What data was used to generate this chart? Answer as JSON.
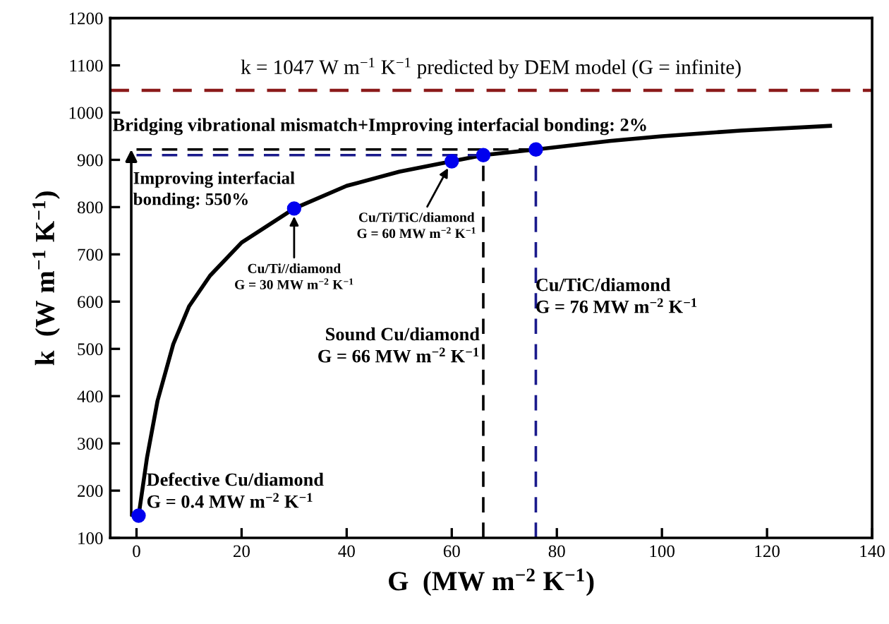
{
  "chart_data": {
    "type": "line",
    "xlabel": "G  (MW m$^{−2}$ K$^{−1}$)",
    "ylabel": "k  (W m$^{−1}$ K$^{−1}$)",
    "xlim": [
      -5,
      140
    ],
    "xticks": [
      0,
      20,
      40,
      60,
      80,
      100,
      120,
      140
    ],
    "ylim": [
      100,
      1200
    ],
    "yticks": [
      100,
      200,
      300,
      400,
      500,
      600,
      700,
      800,
      900,
      1000,
      1100,
      1200
    ],
    "grid": false,
    "legend": false,
    "series": [
      {
        "color": "#000000",
        "line_style": "solid",
        "x": [
          0.4,
          2,
          4,
          7,
          10,
          14,
          20,
          30,
          40,
          50,
          60,
          66,
          76,
          90,
          100,
          115,
          132
        ],
        "values": [
          147,
          270,
          390,
          510,
          590,
          655,
          725,
          797,
          845,
          875,
          897,
          910,
          922,
          940,
          950,
          962,
          972
        ]
      },
      {
        "type": "line",
        "color": "#000000",
        "line_style": "dashed",
        "x": [
          0,
          76
        ],
        "values": [
          922,
          922
        ]
      },
      {
        "type": "line",
        "color": "#1a1a8c",
        "line_style": "dashed",
        "x": [
          0,
          66
        ],
        "values": [
          910,
          910
        ]
      },
      {
        "type": "line",
        "color": "#000000",
        "line_style": "dashed",
        "x": [
          66,
          66
        ],
        "values": [
          100,
          910
        ]
      },
      {
        "type": "line",
        "color": "#1a1a8c",
        "line_style": "dashed",
        "x": [
          76,
          76
        ],
        "values": [
          100,
          922
        ]
      },
      {
        "type": "scatter",
        "color": "#0000ee",
        "marker": "circle",
        "x": [
          0.4,
          30,
          60,
          66,
          76
        ],
        "values": [
          147,
          797,
          897,
          910,
          922
        ]
      }
    ],
    "ref_lines": [
      {
        "axis": "y",
        "value": 1047,
        "label": "k = 1047 W m$^{−1}$ K$^{−1}$ predicted by DEM model (G = infinite)",
        "color": "#8b1a1a",
        "line_style": "dashed"
      }
    ],
    "annotations": [
      "Bridging vibrational mismatch+Improving interfacial bonding: 2%",
      "Improving interfacial\nbonding: 550%",
      {
        "text": "Cu/Ti//diamond\nG = 30 MW m$^{−2}$ K$^{−1}$",
        "x": 30,
        "y": 797
      },
      {
        "text": "Cu/Ti/TiC/diamond\nG = 60 MW m$^{−2}$ K$^{−1}$",
        "x": 60,
        "y": 897
      },
      "Sound Cu/diamond\nG = 66 MW m$^{−2}$ K$^{−1}$",
      "Cu/TiC/diamond\nG = 76 MW m$^{−2}$ K$^{−1}$",
      {
        "text": "Defective Cu/diamond\nG = 0.4 MW m$^{−2}$ K$^{−1}$",
        "x": 0.4,
        "y": 147
      }
    ]
  }
}
